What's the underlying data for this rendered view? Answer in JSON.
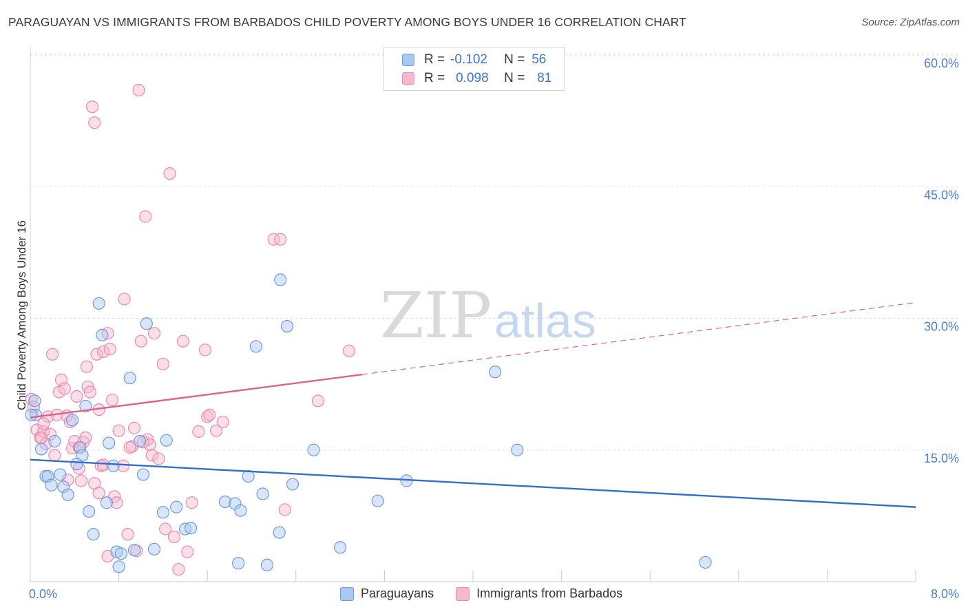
{
  "title": "PARAGUAYAN VS IMMIGRANTS FROM BARBADOS CHILD POVERTY AMONG BOYS UNDER 16 CORRELATION CHART",
  "source": "Source: ZipAtlas.com",
  "watermark": {
    "zip": "ZIP",
    "atlas": "atlas"
  },
  "legend": {
    "row1": {
      "r_label": "R =",
      "r_value": "-0.102",
      "n_label": "N =",
      "n_value": "56"
    },
    "row2": {
      "r_label": "R =",
      "r_value": "0.098",
      "n_label": "N =",
      "n_value": "81"
    }
  },
  "bottom_legend": {
    "s1": "Paraguayans",
    "s2": "Immigrants from Barbados"
  },
  "colors": {
    "blue_fill": "#aac8f2",
    "blue_stroke": "#6b9be0",
    "blue_line": "#2f6fd0",
    "pink_fill": "#f6b8cb",
    "pink_stroke": "#ea8aa8",
    "pink_line": "#e0608e",
    "tick_text": "#4a7fd0",
    "grid": "#dddddd"
  },
  "chart_data": {
    "type": "scatter",
    "xlabel": "",
    "ylabel": "Child Poverty Among Boys Under 16",
    "xlim": [
      0,
      8
    ],
    "ylim": [
      0,
      60
    ],
    "x_tick_labels": [
      "0.0%",
      "8.0%"
    ],
    "y_ticks": [
      15,
      30,
      45,
      60
    ],
    "y_tick_labels": [
      "15.0%",
      "30.0%",
      "45.0%",
      "60.0%"
    ],
    "grid": true,
    "series": [
      {
        "name": "Paraguayans",
        "color": "#6b9be0",
        "trend": {
          "x0": 0,
          "y0": 13.9,
          "x1": 8,
          "y1": 8.5
        },
        "points": [
          [
            0.04,
            20.6
          ],
          [
            0.05,
            19.0
          ],
          [
            0.1,
            15.1
          ],
          [
            0.14,
            12.0
          ],
          [
            0.16,
            12.0
          ],
          [
            0.19,
            11.0
          ],
          [
            0.22,
            16.0
          ],
          [
            0.27,
            12.2
          ],
          [
            0.3,
            10.8
          ],
          [
            0.34,
            9.9
          ],
          [
            0.38,
            18.4
          ],
          [
            0.42,
            13.4
          ],
          [
            0.45,
            15.3
          ],
          [
            0.47,
            14.4
          ],
          [
            0.5,
            20.0
          ],
          [
            0.53,
            8.0
          ],
          [
            0.57,
            5.4
          ],
          [
            0.62,
            31.7
          ],
          [
            0.65,
            28.1
          ],
          [
            0.69,
            9.0
          ],
          [
            0.71,
            15.8
          ],
          [
            0.75,
            13.2
          ],
          [
            0.78,
            3.4
          ],
          [
            0.8,
            1.7
          ],
          [
            0.82,
            3.2
          ],
          [
            0.9,
            23.2
          ],
          [
            0.94,
            3.6
          ],
          [
            0.99,
            16.0
          ],
          [
            1.02,
            12.2
          ],
          [
            1.05,
            29.4
          ],
          [
            1.12,
            3.7
          ],
          [
            1.2,
            7.9
          ],
          [
            1.23,
            16.1
          ],
          [
            1.32,
            8.5
          ],
          [
            1.4,
            6.0
          ],
          [
            1.45,
            6.1
          ],
          [
            1.76,
            9.1
          ],
          [
            1.85,
            8.9
          ],
          [
            1.9,
            8.1
          ],
          [
            1.88,
            2.1
          ],
          [
            1.97,
            12.0
          ],
          [
            2.04,
            26.8
          ],
          [
            2.1,
            10.0
          ],
          [
            2.14,
            1.9
          ],
          [
            2.25,
            5.6
          ],
          [
            2.26,
            34.4
          ],
          [
            2.32,
            29.1
          ],
          [
            2.37,
            11.1
          ],
          [
            2.56,
            15.0
          ],
          [
            2.8,
            3.9
          ],
          [
            3.14,
            9.2
          ],
          [
            3.4,
            11.5
          ],
          [
            4.2,
            23.9
          ],
          [
            4.4,
            15.0
          ],
          [
            6.1,
            2.2
          ],
          [
            0.01,
            19.0
          ]
        ]
      },
      {
        "name": "Immigrants from Barbados",
        "color": "#ea8aa8",
        "trend_solid": {
          "x0": 0,
          "y0": 18.7,
          "x1": 3.0,
          "y1": 23.6
        },
        "trend_dashed": {
          "x0": 3.0,
          "y0": 23.6,
          "x1": 8,
          "y1": 31.8
        },
        "points": [
          [
            0.01,
            20.8
          ],
          [
            0.03,
            19.9
          ],
          [
            0.06,
            17.3
          ],
          [
            0.09,
            16.4
          ],
          [
            0.12,
            17.1
          ],
          [
            0.14,
            15.7
          ],
          [
            0.16,
            18.8
          ],
          [
            0.18,
            16.8
          ],
          [
            0.2,
            25.9
          ],
          [
            0.24,
            19.0
          ],
          [
            0.26,
            21.6
          ],
          [
            0.28,
            23.0
          ],
          [
            0.31,
            22.0
          ],
          [
            0.33,
            18.9
          ],
          [
            0.36,
            18.2
          ],
          [
            0.38,
            15.2
          ],
          [
            0.4,
            16.0
          ],
          [
            0.42,
            21.1
          ],
          [
            0.44,
            12.9
          ],
          [
            0.46,
            11.5
          ],
          [
            0.48,
            15.9
          ],
          [
            0.51,
            24.5
          ],
          [
            0.52,
            22.2
          ],
          [
            0.54,
            21.6
          ],
          [
            0.56,
            54.1
          ],
          [
            0.58,
            52.3
          ],
          [
            0.6,
            25.9
          ],
          [
            0.62,
            19.6
          ],
          [
            0.64,
            13.2
          ],
          [
            0.66,
            26.2
          ],
          [
            0.7,
            28.3
          ],
          [
            0.72,
            26.5
          ],
          [
            0.74,
            20.7
          ],
          [
            0.76,
            9.7
          ],
          [
            0.78,
            9.0
          ],
          [
            0.8,
            17.2
          ],
          [
            0.85,
            32.2
          ],
          [
            0.88,
            5.4
          ],
          [
            0.92,
            15.4
          ],
          [
            0.94,
            17.5
          ],
          [
            0.96,
            3.5
          ],
          [
            0.98,
            56.0
          ],
          [
            1.0,
            27.4
          ],
          [
            1.04,
            41.6
          ],
          [
            1.06,
            16.2
          ],
          [
            1.08,
            15.6
          ],
          [
            1.1,
            14.4
          ],
          [
            1.12,
            28.3
          ],
          [
            1.16,
            14.0
          ],
          [
            1.2,
            24.8
          ],
          [
            1.22,
            6.0
          ],
          [
            1.26,
            46.5
          ],
          [
            1.3,
            5.1
          ],
          [
            1.34,
            1.4
          ],
          [
            1.38,
            27.4
          ],
          [
            1.42,
            3.4
          ],
          [
            1.46,
            9.0
          ],
          [
            1.52,
            17.1
          ],
          [
            1.58,
            26.4
          ],
          [
            1.6,
            18.8
          ],
          [
            1.62,
            19.0
          ],
          [
            1.68,
            17.2
          ],
          [
            1.74,
            18.2
          ],
          [
            2.2,
            39.0
          ],
          [
            2.26,
            39.0
          ],
          [
            2.3,
            8.2
          ],
          [
            2.6,
            20.6
          ],
          [
            2.88,
            26.3
          ],
          [
            0.34,
            11.6
          ],
          [
            0.22,
            14.4
          ],
          [
            0.1,
            16.4
          ],
          [
            0.44,
            15.3
          ],
          [
            0.5,
            16.4
          ],
          [
            0.58,
            11.2
          ],
          [
            0.62,
            10.1
          ],
          [
            0.66,
            13.3
          ],
          [
            0.84,
            13.2
          ],
          [
            0.9,
            15.3
          ],
          [
            1.02,
            15.9
          ],
          [
            0.7,
            2.9
          ],
          [
            0.12,
            18.0
          ]
        ]
      }
    ]
  }
}
